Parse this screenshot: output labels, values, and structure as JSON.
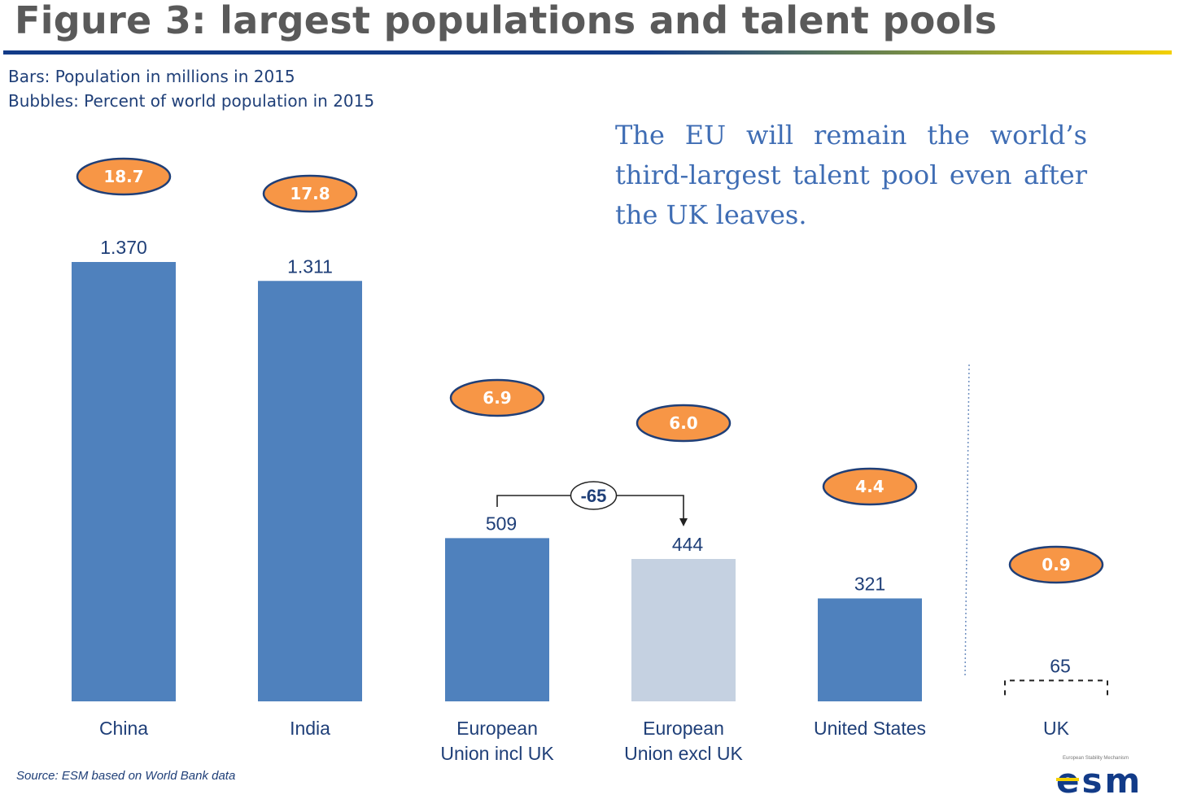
{
  "title": "Figure 3: largest populations and talent pools",
  "legend": {
    "bars": "Bars: Population in millions in 2015",
    "bubbles": "Bubbles: Percent of world population in 2015"
  },
  "callout": "The EU will remain the world’s third-largest talent pool even after the UK leaves.",
  "source": "Source: ESM based on World Bank data",
  "logo": {
    "tagline": "European Stability Mechanism",
    "wordmark": "esm"
  },
  "colors": {
    "bar": "#4f81bd",
    "bar_light": "#c5d1e1",
    "bubble_fill": "#f79646",
    "bubble_stroke": "#1f3f78",
    "label_text": "#1f3f78"
  },
  "chart_data": {
    "type": "bar",
    "categories": [
      [
        "China"
      ],
      [
        "India"
      ],
      [
        "European",
        "Union incl UK"
      ],
      [
        "European",
        "Union excl UK"
      ],
      [
        "United States"
      ],
      [
        "UK"
      ]
    ],
    "series": [
      {
        "values": [
          1370,
          1311,
          509,
          444,
          321,
          65
        ],
        "value_labels": [
          "1.370",
          "1.311",
          "509",
          "444",
          "321",
          "65"
        ]
      }
    ],
    "bubbles": {
      "values": [
        18.7,
        17.8,
        6.9,
        6.0,
        4.4,
        0.9
      ],
      "labels": [
        "18.7",
        "17.8",
        "6.9",
        "6.0",
        "4.4",
        "0.9"
      ]
    },
    "bar_styles": [
      "solid",
      "solid",
      "solid",
      "light",
      "solid",
      "dashed-outline"
    ],
    "annotation": {
      "label": "-65",
      "from": 2,
      "to": 3
    },
    "ylim": [
      0,
      1370
    ],
    "grid": false
  }
}
